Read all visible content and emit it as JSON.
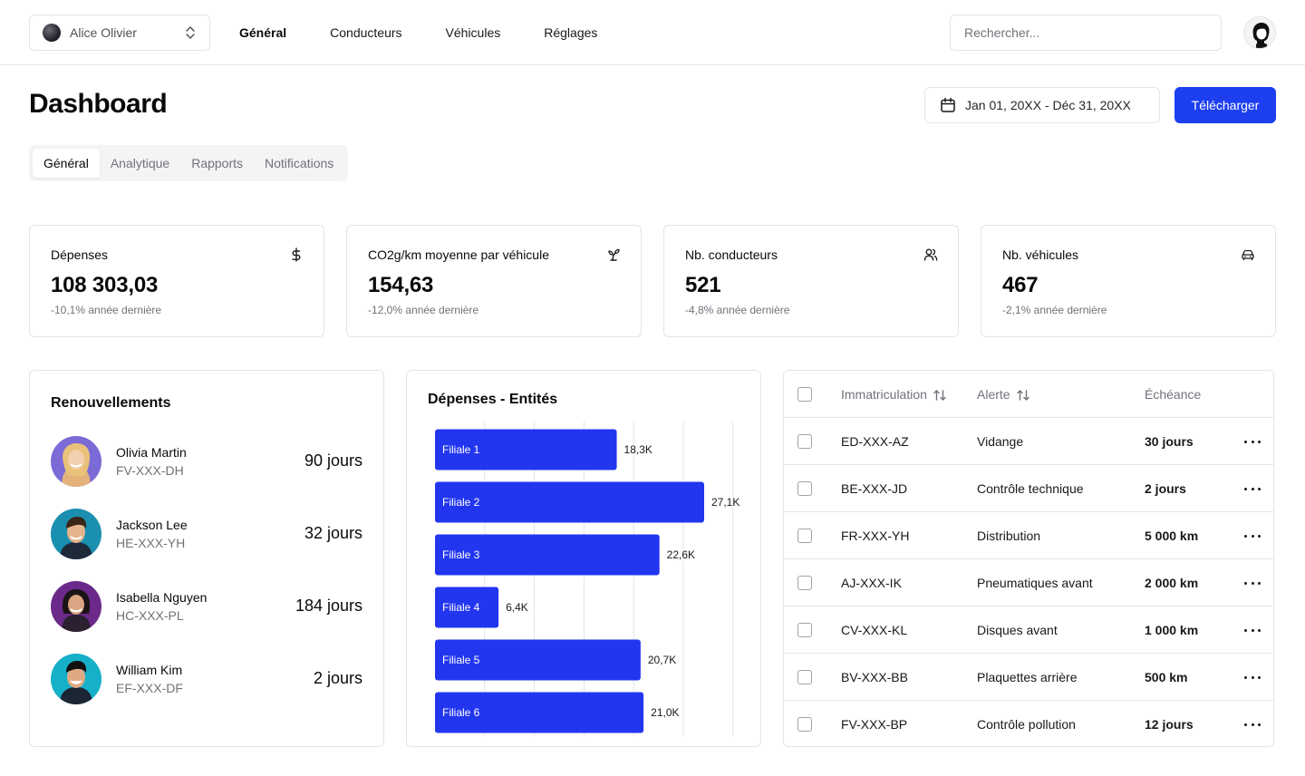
{
  "topbar": {
    "team_name": "Alice Olivier",
    "nav": [
      "Général",
      "Conducteurs",
      "Véhicules",
      "Réglages"
    ],
    "active_nav": 0,
    "search_placeholder": "Rechercher..."
  },
  "header": {
    "title": "Dashboard",
    "date_range": "Jan 01, 20XX - Déc 31, 20XX",
    "download_label": "Télécharger"
  },
  "tabs": [
    "Général",
    "Analytique",
    "Rapports",
    "Notifications"
  ],
  "kpis": [
    {
      "title": "Dépenses",
      "value": "108 303,03",
      "sub": "-10,1% année dernière",
      "icon": "dollar-icon"
    },
    {
      "title": "CO2g/km moyenne par véhicule",
      "value": "154,63",
      "sub": "-12,0% année dernière",
      "icon": "sprout-icon"
    },
    {
      "title": "Nb. conducteurs",
      "value": "521",
      "sub": "-4,8% année dernière",
      "icon": "users-icon"
    },
    {
      "title": "Nb. véhicules",
      "value": "467",
      "sub": "-2,1% année dernière",
      "icon": "car-icon"
    }
  ],
  "renewals": {
    "title": "Renouvellements",
    "items": [
      {
        "name": "Olivia Martin",
        "plate": "FV-XXX-DH",
        "days": "90 jours",
        "color": "#7c6ad6"
      },
      {
        "name": "Jackson Lee",
        "plate": "HE-XXX-YH",
        "days": "32 jours",
        "color": "#1a8fb0"
      },
      {
        "name": "Isabella Nguyen",
        "plate": "HC-XXX-PL",
        "days": "184 jours",
        "color": "#6b2a8a"
      },
      {
        "name": "William Kim",
        "plate": "EF-XXX-DF",
        "days": "2 jours",
        "color": "#16b0c8"
      }
    ]
  },
  "chart_data": {
    "type": "bar",
    "orientation": "horizontal",
    "title": "Dépenses - Entités",
    "categories": [
      "Filiale 1",
      "Filiale 2",
      "Filiale 3",
      "Filiale 4",
      "Filiale 5",
      "Filiale 6"
    ],
    "values": [
      18.3,
      27.1,
      22.6,
      6.4,
      20.7,
      21.0
    ],
    "value_labels": [
      "18,3K",
      "27,1K",
      "22,6K",
      "6,4K",
      "20,7K",
      "21,0K"
    ],
    "xlim": [
      0,
      30
    ],
    "grid": true,
    "bar_color": "#2236f0"
  },
  "table": {
    "columns": [
      "Immatriculation",
      "Alerte",
      "Échéance"
    ],
    "rows": [
      {
        "plate": "ED-XXX-AZ",
        "alert": "Vidange",
        "due": "30 jours"
      },
      {
        "plate": "BE-XXX-JD",
        "alert": "Contrôle technique",
        "due": "2 jours"
      },
      {
        "plate": "FR-XXX-YH",
        "alert": "Distribution",
        "due": "5 000 km"
      },
      {
        "plate": "AJ-XXX-IK",
        "alert": "Pneumatiques avant",
        "due": "2 000 km"
      },
      {
        "plate": "CV-XXX-KL",
        "alert": "Disques avant",
        "due": "1 000 km"
      },
      {
        "plate": "BV-XXX-BB",
        "alert": "Plaquettes arrière",
        "due": "500 km"
      },
      {
        "plate": "FV-XXX-BP",
        "alert": "Contrôle pollution",
        "due": "12 jours"
      }
    ]
  }
}
